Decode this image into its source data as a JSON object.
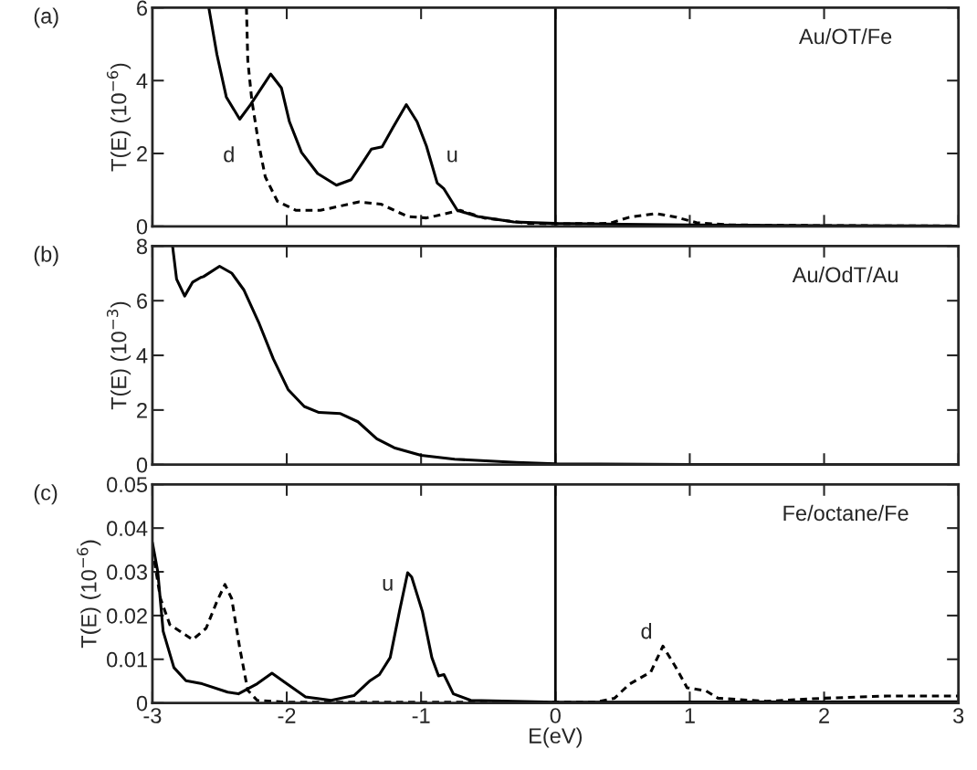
{
  "chart_data": [
    {
      "type": "line",
      "title": "(a)",
      "ylabel": "T(E) (10$^{−6}$)",
      "xlim": [
        -3,
        3
      ],
      "ylim": [
        0,
        6
      ],
      "xticks": [
        -3,
        -2,
        -1,
        0,
        1,
        2,
        3
      ],
      "yticks": [
        0,
        2,
        4,
        6
      ],
      "tick_labels": "y",
      "annotations": [
        "Au/OT/Fe"
      ],
      "ref_lines": [
        {
          "axis": "x",
          "value": 0,
          "color": "#000000",
          "line_style": "solid"
        }
      ],
      "series": [
        {
          "name": "u",
          "color": "#000000",
          "line_style": "solid",
          "x": [
            -2.58,
            -2.52,
            -2.45,
            -2.35,
            -2.27,
            -2.12,
            -2.04,
            -1.98,
            -1.89,
            -1.77,
            -1.63,
            -1.52,
            -1.43,
            -1.37,
            -1.29,
            -1.21,
            -1.11,
            -1.03,
            -0.96,
            -0.88,
            -0.83,
            -0.73,
            -0.58,
            -0.31,
            0,
            0.5,
            1,
            2,
            3
          ],
          "values": [
            6.0,
            4.72,
            3.55,
            2.94,
            3.34,
            4.18,
            3.8,
            2.87,
            2.03,
            1.45,
            1.13,
            1.28,
            1.78,
            2.12,
            2.18,
            2.71,
            3.34,
            2.87,
            2.2,
            1.19,
            1.03,
            0.44,
            0.27,
            0.12,
            0.08,
            0.06,
            0.04,
            0.02,
            0.01
          ]
        },
        {
          "name": "d",
          "color": "#000000",
          "line_style": "dashed",
          "x": [
            -2.3,
            -2.29,
            -2.26,
            -2.21,
            -2.16,
            -2.07,
            -1.93,
            -1.75,
            -1.46,
            -1.3,
            -1.1,
            -0.96,
            -0.71,
            -0.53,
            -0.2,
            0,
            0.4,
            0.55,
            0.75,
            0.9,
            1.05,
            1.3,
            2,
            3
          ],
          "values": [
            6.0,
            4.55,
            3.46,
            2.29,
            1.36,
            0.69,
            0.44,
            0.44,
            0.67,
            0.61,
            0.27,
            0.23,
            0.44,
            0.23,
            0.08,
            0.07,
            0.08,
            0.25,
            0.35,
            0.25,
            0.1,
            0.04,
            0.02,
            0.01
          ]
        }
      ]
    },
    {
      "type": "line",
      "title": "(b)",
      "ylabel": "T(E) (10$^{−3}$)",
      "xlim": [
        -3,
        3
      ],
      "ylim": [
        0,
        8
      ],
      "xticks": [
        -3,
        -2,
        -1,
        0,
        1,
        2,
        3
      ],
      "yticks": [
        0,
        2,
        4,
        6,
        8
      ],
      "tick_labels": "y",
      "annotations": [
        "Au/OdT/Au"
      ],
      "ref_lines": [
        {
          "axis": "x",
          "value": 0,
          "color": "#000000",
          "line_style": "solid"
        }
      ],
      "series": [
        {
          "color": "#000000",
          "line_style": "solid",
          "x": [
            -2.85,
            -2.82,
            -2.76,
            -2.7,
            -2.64,
            -2.62,
            -2.5,
            -2.41,
            -2.32,
            -2.21,
            -2.1,
            -1.99,
            -1.87,
            -1.76,
            -1.6,
            -1.47,
            -1.33,
            -1.2,
            -1.0,
            -0.75,
            -0.29,
            0,
            1,
            3
          ],
          "values": [
            8.0,
            6.79,
            6.17,
            6.68,
            6.85,
            6.88,
            7.26,
            7.01,
            6.4,
            5.22,
            3.87,
            2.75,
            2.13,
            1.91,
            1.87,
            1.57,
            0.95,
            0.62,
            0.34,
            0.2,
            0.08,
            0.03,
            0.01,
            0.0
          ]
        }
      ]
    },
    {
      "type": "line",
      "title": "(c)",
      "ylabel": "T(E) (10$^{−6}$)",
      "xlabel": "E(eV)",
      "xlim": [
        -3,
        3
      ],
      "ylim": [
        0,
        0.05
      ],
      "xticks": [
        -3,
        -2,
        -1,
        0,
        1,
        2,
        3
      ],
      "yticks": [
        0,
        0.01,
        0.02,
        0.03,
        0.04,
        0.05
      ],
      "annotations": [
        "Fe/octane/Fe"
      ],
      "ref_lines": [
        {
          "axis": "x",
          "value": 0,
          "color": "#000000",
          "line_style": "solid"
        }
      ],
      "series": [
        {
          "name": "u",
          "color": "#000000",
          "line_style": "solid",
          "x": [
            -3.0,
            -2.96,
            -2.92,
            -2.84,
            -2.75,
            -2.63,
            -2.44,
            -2.36,
            -2.22,
            -2.11,
            -2.0,
            -1.86,
            -1.67,
            -1.5,
            -1.38,
            -1.31,
            -1.23,
            -1.16,
            -1.1,
            -1.07,
            -0.99,
            -0.92,
            -0.87,
            -0.83,
            -0.76,
            -0.63,
            0,
            3
          ],
          "values": [
            0.0367,
            0.03,
            0.0164,
            0.0081,
            0.0051,
            0.0044,
            0.0025,
            0.0021,
            0.0044,
            0.0068,
            0.0044,
            0.0014,
            0.0006,
            0.0017,
            0.0051,
            0.0065,
            0.0104,
            0.0211,
            0.0298,
            0.0288,
            0.0209,
            0.0104,
            0.0062,
            0.0065,
            0.0021,
            0.0006,
            0.0002,
            0.0003
          ]
        },
        {
          "name": "d",
          "color": "#000000",
          "line_style": "dashed",
          "x": [
            -3.0,
            -2.94,
            -2.87,
            -2.7,
            -2.6,
            -2.52,
            -2.46,
            -2.41,
            -2.35,
            -2.29,
            -2.22,
            -2.0,
            0.3,
            0.44,
            0.55,
            0.71,
            0.8,
            0.89,
            0.98,
            1.12,
            1.21,
            1.57,
            2.0,
            2.47,
            3.0
          ],
          "values": [
            0.0352,
            0.0239,
            0.0179,
            0.0145,
            0.0171,
            0.0232,
            0.0271,
            0.0239,
            0.0126,
            0.0029,
            0.0006,
            0.0002,
            0.0002,
            0.0011,
            0.0043,
            0.0071,
            0.013,
            0.0085,
            0.0035,
            0.0028,
            0.0011,
            0.0004,
            0.0011,
            0.0016,
            0.0016
          ]
        }
      ]
    }
  ]
}
